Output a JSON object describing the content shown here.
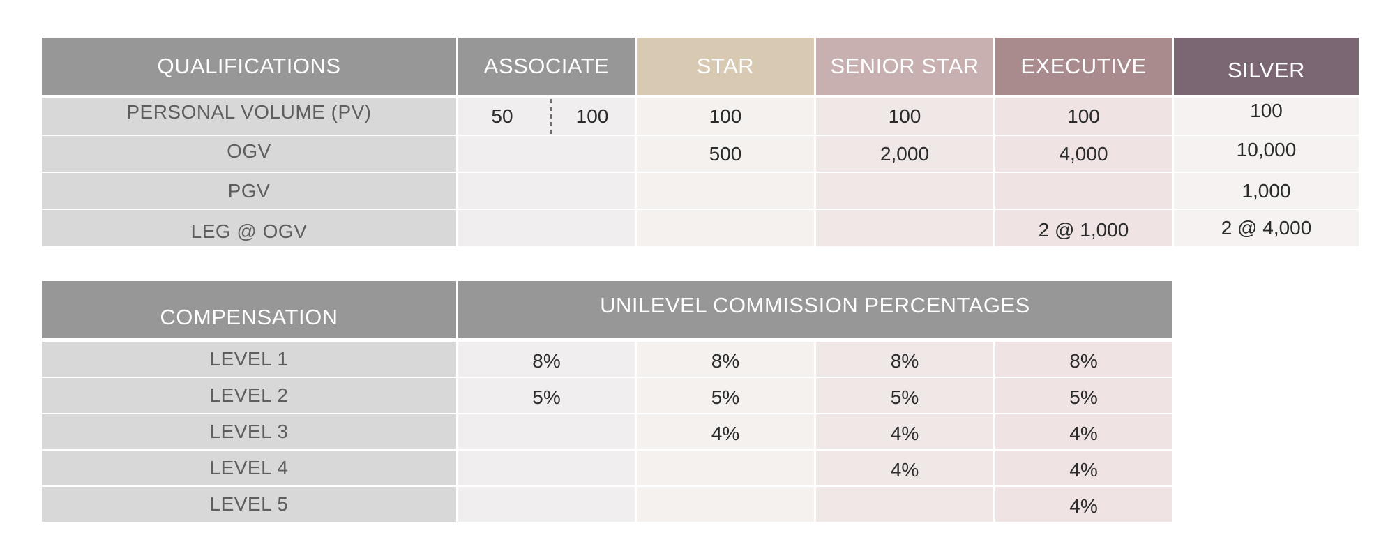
{
  "qualifications": {
    "headers": [
      {
        "label": "QUALIFICATIONS",
        "color": "#979798"
      },
      {
        "label": "ASSOCIATE",
        "color": "#979798"
      },
      {
        "label": "STAR",
        "color": "#d8c9b2"
      },
      {
        "label": "SENIOR STAR",
        "color": "#c8b0b1"
      },
      {
        "label": "EXECUTIVE",
        "color": "#aa8b8d"
      },
      {
        "label": "SILVER",
        "color": "#7b6773"
      }
    ],
    "rows": [
      {
        "label": "PERSONAL VOLUME (PV)",
        "associate_low": "50",
        "associate_high": "100",
        "star": "100",
        "senior_star": "100",
        "executive": "100",
        "silver": "100"
      },
      {
        "label": "OGV",
        "associate": "",
        "star": "500",
        "senior_star": "2,000",
        "executive": "4,000",
        "silver": "10,000"
      },
      {
        "label": "PGV",
        "associate": "",
        "star": "",
        "senior_star": "",
        "executive": "",
        "silver": "1,000"
      },
      {
        "label": "LEG @ OGV",
        "associate": "",
        "star": "",
        "senior_star": "",
        "executive": "2 @ 1,000",
        "silver": "2 @ 4,000"
      }
    ]
  },
  "compensation": {
    "header_label": "COMPENSATION",
    "header_title": "UNILEVEL COMMISSION PERCENTAGES",
    "header_color": "#979798",
    "rows": [
      {
        "label": "LEVEL 1",
        "values": [
          "8%",
          "8%",
          "8%",
          "8%"
        ]
      },
      {
        "label": "LEVEL 2",
        "values": [
          "5%",
          "5%",
          "5%",
          "5%"
        ]
      },
      {
        "label": "LEVEL 3",
        "values": [
          "",
          "4%",
          "4%",
          "4%"
        ]
      },
      {
        "label": "LEVEL 4",
        "values": [
          "",
          "",
          "4%",
          "4%"
        ]
      },
      {
        "label": "LEVEL 5",
        "values": [
          "",
          "",
          "",
          "4%"
        ]
      }
    ]
  }
}
